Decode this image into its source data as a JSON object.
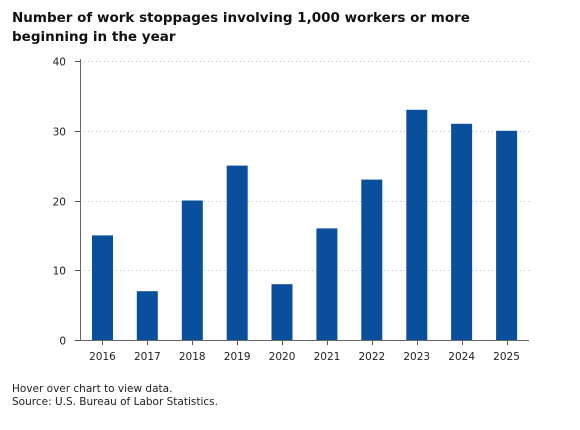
{
  "chart_data": {
    "type": "bar",
    "title": "Number of work stoppages involving 1,000 workers or more beginning in the year",
    "categories": [
      "2016",
      "2017",
      "2018",
      "2019",
      "2020",
      "2021",
      "2022",
      "2023",
      "2024",
      "2025"
    ],
    "values": [
      15,
      7,
      20,
      25,
      8,
      16,
      23,
      33,
      31,
      30
    ],
    "xlabel": "",
    "ylabel": "",
    "ylim": [
      0,
      40
    ],
    "yticks": [
      "0",
      "10",
      "20",
      "30",
      "40"
    ],
    "grid": true,
    "bar_color": "#0a4f9c",
    "grid_color": "#bdbdbd"
  },
  "footer": {
    "hover_note": "Hover over chart to view data.",
    "source": "Source: U.S. Bureau of Labor Statistics."
  }
}
